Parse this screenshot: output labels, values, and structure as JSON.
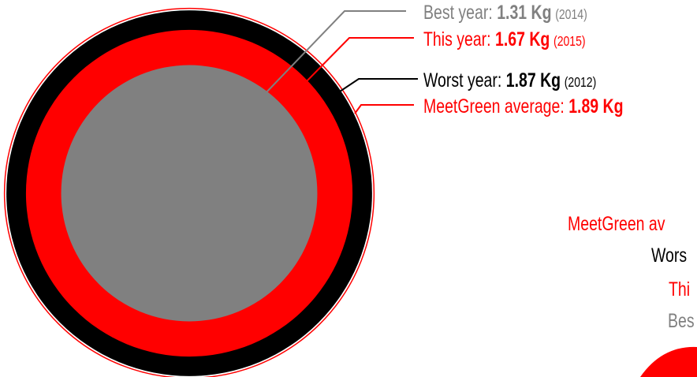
{
  "chart_data": {
    "type": "nested-circle",
    "categories": [
      "Best year:",
      "This year:",
      "Worst year:",
      "MeetGreen average:"
    ],
    "values": [
      1.31,
      1.67,
      1.87,
      1.89
    ],
    "value_labels": [
      "1.31 Kg",
      "1.67 Kg",
      "1.87 Kg",
      "1.89 Kg"
    ],
    "years": [
      "(2014)",
      "(2015)",
      "(2012)",
      null
    ],
    "colors": [
      "#808080",
      "#ff0000",
      "#000000",
      "#ff0000"
    ],
    "clipped_labels": [
      "MeetGreen av",
      "Wors",
      "Thi",
      "Bes"
    ],
    "clipped_colors": [
      "#ff0000",
      "#000000",
      "#ff0000",
      "#808080"
    ]
  }
}
